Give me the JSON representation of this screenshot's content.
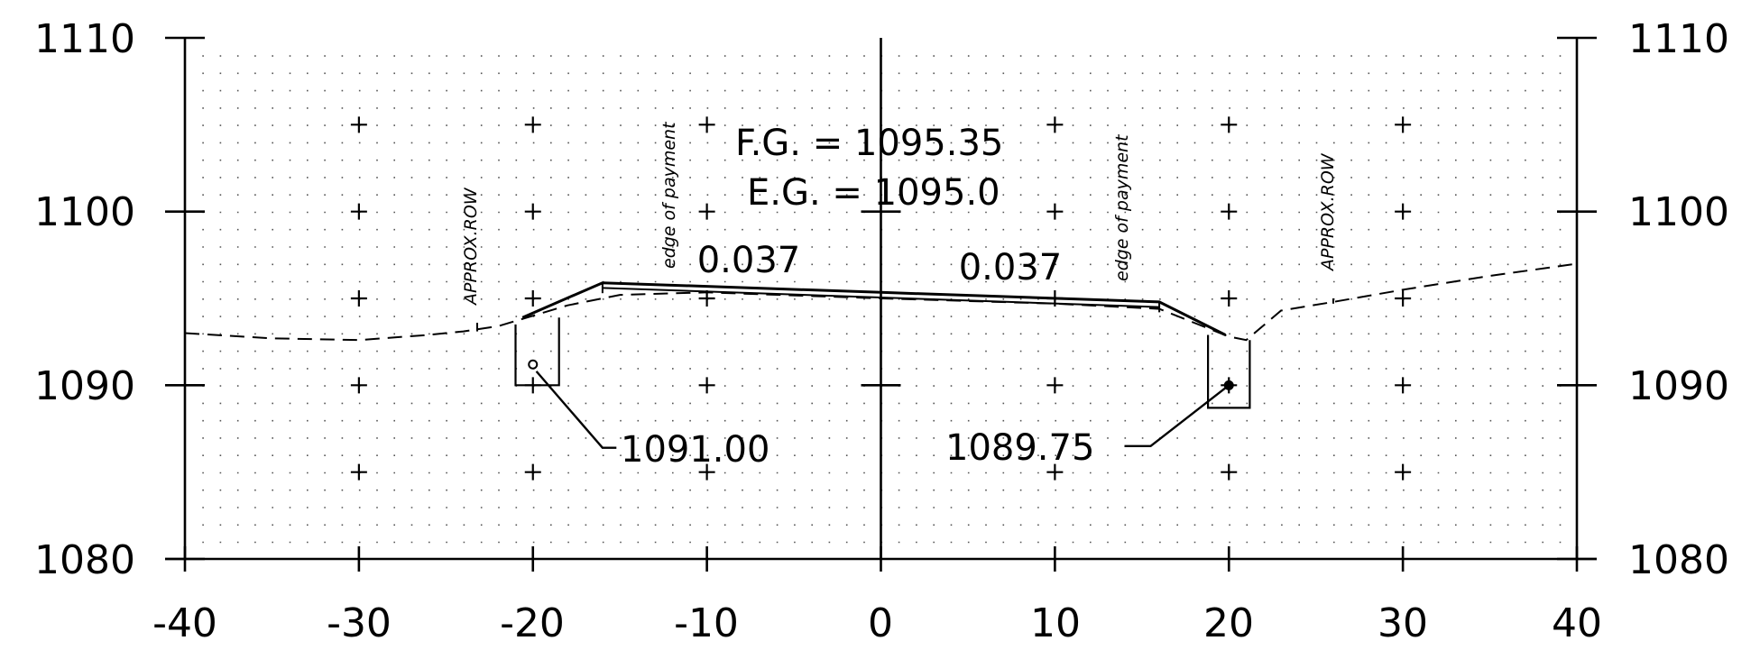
{
  "chart_data": {
    "type": "line",
    "xlim": [
      -40,
      40
    ],
    "ylim": [
      1080,
      1110
    ],
    "x_ticks": [
      "-40",
      "-30",
      "-20",
      "-10",
      "0",
      "10",
      "20",
      "30",
      "40"
    ],
    "y_ticks_left": [
      "1110",
      "1100",
      "1090",
      "1080"
    ],
    "y_ticks_right": [
      "1110",
      "1100",
      "1090",
      "1080"
    ],
    "grid": "dotted",
    "annotations": {
      "fg": "F.G. = 1095.35",
      "eg": "E.G. = 1095.0",
      "slope_left": "0.037",
      "slope_right": "0.037",
      "elev_left": "1091.00",
      "elev_right": "1089.75",
      "edge_left": "edge of payment",
      "edge_right": "edge of payment",
      "row_left": "APPROX.ROW",
      "row_right": "APPROX.ROW"
    },
    "series": [
      {
        "values": [
          [
            -40,
            1093.0
          ],
          [
            -35,
            1092.7
          ],
          [
            -30,
            1092.6
          ],
          [
            -26,
            1092.9
          ],
          [
            -24,
            1093.1
          ],
          [
            -22,
            1093.4
          ],
          [
            -18,
            1094.6
          ],
          [
            -15,
            1095.2
          ],
          [
            -10,
            1095.35
          ],
          [
            0,
            1095.0
          ],
          [
            10,
            1094.7
          ],
          [
            16,
            1094.4
          ],
          [
            18,
            1093.6
          ],
          [
            20,
            1092.8
          ],
          [
            21,
            1092.6
          ],
          [
            23,
            1094.3
          ],
          [
            26,
            1094.8
          ],
          [
            30,
            1095.5
          ],
          [
            35,
            1096.3
          ],
          [
            40,
            1097.0
          ]
        ]
      },
      {
        "values": [
          [
            -20.6,
            1093.9
          ],
          [
            -16,
            1095.9
          ],
          [
            0,
            1095.35
          ],
          [
            16,
            1094.8
          ],
          [
            19.8,
            1092.9
          ]
        ]
      }
    ]
  }
}
